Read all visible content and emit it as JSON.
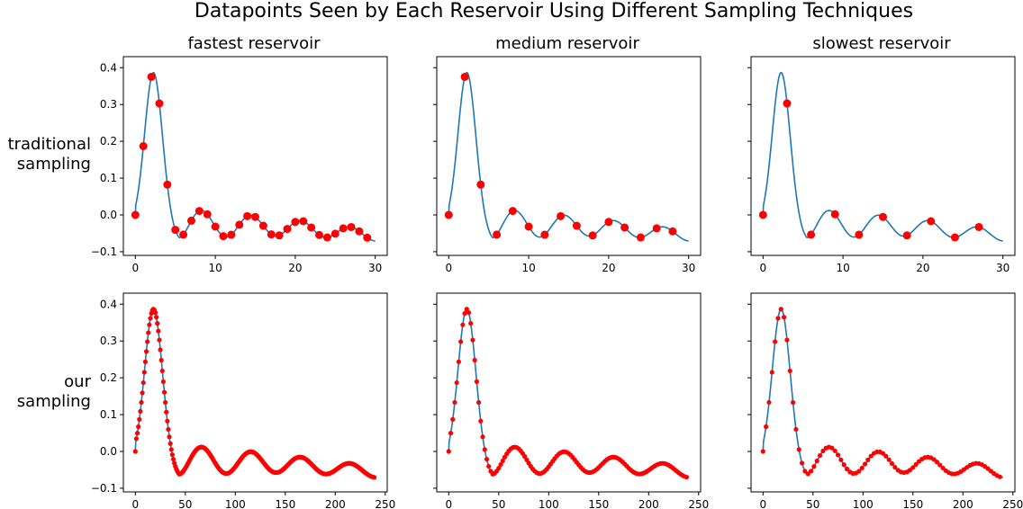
{
  "figure": {
    "suptitle": "Datapoints Seen by Each Reservoir Using Different Sampling Techniques",
    "row_labels": [
      [
        "traditional",
        "sampling"
      ],
      [
        "our",
        "sampling"
      ]
    ],
    "column_titles": [
      "fastest reservoir",
      "medium reservoir",
      "slowest reservoir"
    ]
  },
  "colors": {
    "curve": "#1f77b4",
    "points": "#ff0000",
    "axes": "#000000"
  },
  "chart_data": [
    {
      "type": "line",
      "title": "fastest reservoir",
      "row_label": "traditional sampling",
      "xlim": [
        -1.5,
        31.5
      ],
      "ylim": [
        -0.11,
        0.43
      ],
      "xticks": [
        0,
        10,
        20,
        30
      ],
      "yticks": [
        -0.1,
        0.0,
        0.1,
        0.2,
        0.3,
        0.4
      ],
      "yticklabels": [
        "−0.1",
        "0.0",
        "0.1",
        "0.2",
        "0.3",
        "0.4"
      ],
      "curve_x_max": 30,
      "sampled_x": [
        0,
        1,
        2,
        3,
        4,
        5,
        6,
        7,
        8,
        9,
        10,
        11,
        12,
        13,
        14,
        15,
        16,
        17,
        18,
        19,
        20,
        21,
        22,
        23,
        24,
        25,
        26,
        27,
        28,
        29
      ],
      "marker_radius": 4.5
    },
    {
      "type": "line",
      "title": "medium reservoir",
      "row_label": "traditional sampling",
      "xlim": [
        -1.5,
        31.5
      ],
      "ylim": [
        -0.11,
        0.43
      ],
      "xticks": [
        0,
        10,
        20,
        30
      ],
      "yticks": [
        -0.1,
        0.0,
        0.1,
        0.2,
        0.3,
        0.4
      ],
      "yticklabels": [],
      "curve_x_max": 30,
      "sampled_x": [
        0,
        2,
        4,
        6,
        8,
        10,
        12,
        14,
        16,
        18,
        20,
        22,
        24,
        26,
        28
      ],
      "marker_radius": 4.5
    },
    {
      "type": "line",
      "title": "slowest reservoir",
      "row_label": "traditional sampling",
      "xlim": [
        -1.5,
        31.5
      ],
      "ylim": [
        -0.11,
        0.43
      ],
      "xticks": [
        0,
        10,
        20,
        30
      ],
      "yticks": [
        -0.1,
        0.0,
        0.1,
        0.2,
        0.3,
        0.4
      ],
      "yticklabels": [],
      "curve_x_max": 30,
      "sampled_x": [
        0,
        3,
        6,
        9,
        12,
        15,
        18,
        21,
        24,
        27
      ],
      "marker_radius": 4.5
    },
    {
      "type": "line",
      "title": "",
      "row_label": "our sampling",
      "xlim": [
        -12,
        252
      ],
      "ylim": [
        -0.11,
        0.43
      ],
      "xticks": [
        0,
        50,
        100,
        150,
        200,
        250
      ],
      "yticks": [
        -0.1,
        0.0,
        0.1,
        0.2,
        0.3,
        0.4
      ],
      "yticklabels": [
        "−0.1",
        "0.0",
        "0.1",
        "0.2",
        "0.3",
        "0.4"
      ],
      "curve_x_max": 240,
      "sampled_step": 1,
      "marker_radius": 2.6
    },
    {
      "type": "line",
      "title": "",
      "row_label": "our sampling",
      "xlim": [
        -12,
        252
      ],
      "ylim": [
        -0.11,
        0.43
      ],
      "xticks": [
        0,
        50,
        100,
        150,
        200,
        250
      ],
      "yticks": [
        -0.1,
        0.0,
        0.1,
        0.2,
        0.3,
        0.4
      ],
      "yticklabels": [],
      "curve_x_max": 240,
      "sampled_step": 2,
      "marker_radius": 2.6
    },
    {
      "type": "line",
      "title": "",
      "row_label": "our sampling",
      "xlim": [
        -12,
        252
      ],
      "ylim": [
        -0.11,
        0.43
      ],
      "xticks": [
        0,
        50,
        100,
        150,
        200,
        250
      ],
      "yticks": [
        -0.1,
        0.0,
        0.1,
        0.2,
        0.3,
        0.4
      ],
      "yticklabels": [],
      "curve_x_max": 240,
      "sampled_step": 3,
      "marker_radius": 2.6
    }
  ]
}
